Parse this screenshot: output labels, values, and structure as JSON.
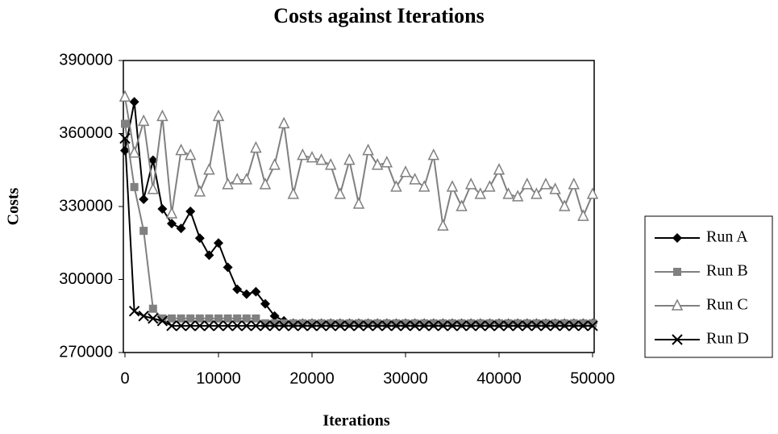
{
  "chart_data": {
    "type": "line",
    "title": "Costs against Iterations",
    "x_label": "Iterations",
    "y_label": "Costs",
    "x": [
      0,
      1000,
      2000,
      3000,
      4000,
      5000,
      6000,
      7000,
      8000,
      9000,
      10000,
      11000,
      12000,
      13000,
      14000,
      15000,
      16000,
      17000,
      18000,
      19000,
      20000,
      21000,
      22000,
      23000,
      24000,
      25000,
      26000,
      27000,
      28000,
      29000,
      30000,
      31000,
      32000,
      33000,
      34000,
      35000,
      36000,
      37000,
      38000,
      39000,
      40000,
      41000,
      42000,
      43000,
      44000,
      45000,
      46000,
      47000,
      48000,
      49000,
      50000
    ],
    "series": [
      {
        "name": "Run A",
        "color": "#000000",
        "marker": "diamond",
        "values": [
          353000,
          373000,
          333000,
          349000,
          329000,
          323000,
          321000,
          328000,
          317000,
          310000,
          315000,
          305000,
          296000,
          294000,
          295000,
          290000,
          285000,
          283000,
          282000,
          282000,
          282000,
          282000,
          282000,
          282000,
          282000,
          282000,
          282000,
          282000,
          282000,
          282000,
          282000,
          282000,
          282000,
          282000,
          282000,
          282000,
          282000,
          282000,
          282000,
          282000,
          282000,
          282000,
          282000,
          282000,
          282000,
          282000,
          282000,
          282000,
          282000,
          282000,
          282000
        ]
      },
      {
        "name": "Run B",
        "color": "#808080",
        "marker": "square",
        "values": [
          364000,
          338000,
          320000,
          288000,
          284000,
          284000,
          284000,
          284000,
          284000,
          284000,
          284000,
          284000,
          284000,
          284000,
          284000,
          282000,
          282000,
          282000,
          282000,
          282000,
          282000,
          282000,
          282000,
          282000,
          282000,
          282000,
          282000,
          282000,
          282000,
          282000,
          282000,
          282000,
          282000,
          282000,
          282000,
          282000,
          282000,
          282000,
          282000,
          282000,
          282000,
          282000,
          282000,
          282000,
          282000,
          282000,
          282000,
          282000,
          282000,
          282000,
          282000
        ]
      },
      {
        "name": "Run C",
        "color": "#808080",
        "marker": "triangle",
        "values": [
          375000,
          352000,
          365000,
          337000,
          367000,
          327000,
          353000,
          351000,
          336000,
          345000,
          367000,
          339000,
          341000,
          341000,
          354000,
          339000,
          347000,
          364000,
          335000,
          351000,
          350000,
          349000,
          347000,
          335000,
          349000,
          331000,
          353000,
          347000,
          348000,
          338000,
          344000,
          341000,
          338000,
          351000,
          322000,
          338000,
          330000,
          339000,
          335000,
          338000,
          345000,
          335000,
          334000,
          339000,
          335000,
          339000,
          337000,
          330000,
          339000,
          326000,
          335000
        ]
      },
      {
        "name": "Run D",
        "color": "#000000",
        "marker": "cross",
        "values": [
          358000,
          287000,
          285000,
          284000,
          283000,
          281000,
          281000,
          281000,
          281000,
          281000,
          281000,
          281000,
          281000,
          281000,
          281000,
          281000,
          281000,
          281000,
          281000,
          281000,
          281000,
          281000,
          281000,
          281000,
          281000,
          281000,
          281000,
          281000,
          281000,
          281000,
          281000,
          281000,
          281000,
          281000,
          281000,
          281000,
          281000,
          281000,
          281000,
          281000,
          281000,
          281000,
          281000,
          281000,
          281000,
          281000,
          281000,
          281000,
          281000,
          281000,
          281000
        ]
      }
    ],
    "xlim": [
      0,
      50000
    ],
    "xticks": [
      0,
      10000,
      20000,
      30000,
      40000,
      50000
    ],
    "ylim": [
      270000,
      390000
    ],
    "yticks": [
      270000,
      300000,
      330000,
      360000,
      390000
    ],
    "legend": "right"
  }
}
